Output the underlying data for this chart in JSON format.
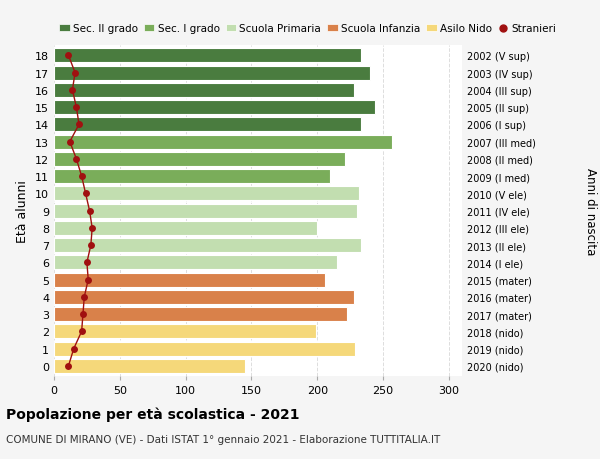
{
  "ages": [
    18,
    17,
    16,
    15,
    14,
    13,
    12,
    11,
    10,
    9,
    8,
    7,
    6,
    5,
    4,
    3,
    2,
    1,
    0
  ],
  "bar_values": [
    233,
    240,
    228,
    244,
    233,
    257,
    221,
    210,
    232,
    230,
    200,
    233,
    215,
    206,
    228,
    223,
    199,
    229,
    145
  ],
  "stranieri": [
    11,
    16,
    14,
    17,
    19,
    12,
    17,
    21,
    24,
    27,
    29,
    28,
    25,
    26,
    23,
    22,
    21,
    15,
    11
  ],
  "right_labels": [
    "2002 (V sup)",
    "2003 (IV sup)",
    "2004 (III sup)",
    "2005 (II sup)",
    "2006 (I sup)",
    "2007 (III med)",
    "2008 (II med)",
    "2009 (I med)",
    "2010 (V ele)",
    "2011 (IV ele)",
    "2012 (III ele)",
    "2013 (II ele)",
    "2014 (I ele)",
    "2015 (mater)",
    "2016 (mater)",
    "2017 (mater)",
    "2018 (nido)",
    "2019 (nido)",
    "2020 (nido)"
  ],
  "bar_colors": [
    "#4a7c3f",
    "#4a7c3f",
    "#4a7c3f",
    "#4a7c3f",
    "#4a7c3f",
    "#7aad5a",
    "#7aad5a",
    "#7aad5a",
    "#c2deb0",
    "#c2deb0",
    "#c2deb0",
    "#c2deb0",
    "#c2deb0",
    "#d9814a",
    "#d9814a",
    "#d9814a",
    "#f5d87a",
    "#f5d87a",
    "#f5d87a"
  ],
  "legend_labels": [
    "Sec. II grado",
    "Sec. I grado",
    "Scuola Primaria",
    "Scuola Infanzia",
    "Asilo Nido",
    "Stranieri"
  ],
  "legend_colors": [
    "#4a7c3f",
    "#7aad5a",
    "#c2deb0",
    "#d9814a",
    "#f5d87a",
    "#a01010"
  ],
  "title_main": "Popolazione per età scolastica - 2021",
  "title_sub": "COMUNE DI MIRANO (VE) - Dati ISTAT 1° gennaio 2021 - Elaborazione TUTTITALIA.IT",
  "ylabel_left": "Età alunni",
  "ylabel_right": "Anni di nascita",
  "xlim": [
    0,
    310
  ],
  "xticks": [
    0,
    50,
    100,
    150,
    200,
    250,
    300
  ],
  "background_color": "#f5f5f5",
  "plot_bg_color": "#ffffff",
  "bar_height": 0.82,
  "stranieri_color": "#a01010",
  "grid_color": "#dddddd"
}
